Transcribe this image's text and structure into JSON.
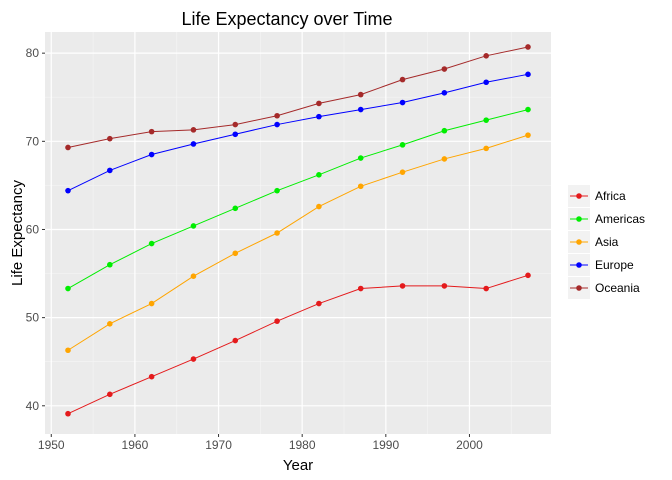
{
  "chart_data": {
    "type": "line",
    "title": "Life Expectancy over Time",
    "xlabel": "Year",
    "ylabel": "Life Expectancy",
    "x": [
      1952,
      1957,
      1962,
      1967,
      1972,
      1977,
      1982,
      1987,
      1992,
      1997,
      2002,
      2007
    ],
    "xlim": [
      1949.25,
      2009.75
    ],
    "ylim": [
      36.8,
      82.4
    ],
    "xticks": [
      1950,
      1960,
      1970,
      1980,
      1990,
      2000
    ],
    "xticklabels": [
      "1950",
      "1960",
      "1970",
      "1980",
      "1990",
      "2000"
    ],
    "yticks": [
      40,
      50,
      60,
      70,
      80
    ],
    "yticklabels": [
      "40",
      "50",
      "60",
      "70",
      "80"
    ],
    "grid": true,
    "legend_position": "right",
    "background": "#EBEBEB",
    "series": [
      {
        "name": "Africa",
        "color": "#E41A1C",
        "values": [
          39.1,
          41.3,
          43.3,
          45.3,
          47.4,
          49.6,
          51.6,
          53.3,
          53.6,
          53.6,
          53.3,
          54.8
        ]
      },
      {
        "name": "Americas",
        "color": "#00EE00",
        "values": [
          53.3,
          56.0,
          58.4,
          60.4,
          62.4,
          64.4,
          66.2,
          68.1,
          69.6,
          71.2,
          72.4,
          73.6
        ]
      },
      {
        "name": "Asia",
        "color": "#FFA500",
        "values": [
          46.3,
          49.3,
          51.6,
          54.7,
          57.3,
          59.6,
          62.6,
          64.9,
          66.5,
          68.0,
          69.2,
          70.7
        ]
      },
      {
        "name": "Europe",
        "color": "#0000FF",
        "values": [
          64.4,
          66.7,
          68.5,
          69.7,
          70.8,
          71.9,
          72.8,
          73.6,
          74.4,
          75.5,
          76.7,
          77.6
        ]
      },
      {
        "name": "Oceania",
        "color": "#A52A2A",
        "values": [
          69.3,
          70.3,
          71.1,
          71.3,
          71.9,
          72.9,
          74.3,
          75.3,
          77.0,
          78.2,
          79.7,
          80.7
        ]
      }
    ]
  }
}
